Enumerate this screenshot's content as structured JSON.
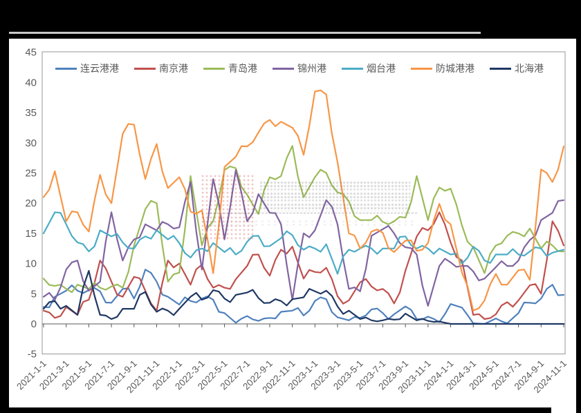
{
  "page": {
    "background": "#ffffff",
    "frame_color": "#000000",
    "header_rule_color": "#c9c9c9"
  },
  "watermark": {
    "stamp_color": "#c03028",
    "text_color": "#6a6a6a"
  },
  "axis": {
    "label_color": "#595959",
    "border_color": "#a6a6a6",
    "y_tick_labels": [
      "45",
      "40",
      "35",
      "30",
      "25",
      "20",
      "15",
      "10",
      "5",
      "0",
      "-5"
    ],
    "x_tick_labels": [
      "2021-1-1",
      "2021-3-1",
      "2021-5-1",
      "2021-7-1",
      "2021-9-1",
      "2021-11-1",
      "2022-1-1",
      "2022-3-1",
      "2022-5-1",
      "2022-7-1",
      "2022-9-1",
      "2022-11-1",
      "2023-1-1",
      "2023-3-1",
      "2023-5-1",
      "2023-7-1",
      "2023-9-1",
      "2023-11-1",
      "2024-1-1",
      "2024-3-1",
      "2024-5-1",
      "2024-7-1",
      "2024-9-1",
      "2024-11-1"
    ]
  },
  "chart_data": {
    "type": "line",
    "title": "",
    "xlabel": "",
    "ylabel": "",
    "ylim": [
      -5,
      45
    ],
    "grid": false,
    "legend_position": "top",
    "categories": [
      "2021-1-1",
      "2021-2-1",
      "2021-3-1",
      "2021-4-1",
      "2021-5-1",
      "2021-6-1",
      "2021-7-1",
      "2021-8-1",
      "2021-9-1",
      "2021-10-1",
      "2021-11-1",
      "2021-12-1",
      "2022-1-1",
      "2022-2-1",
      "2022-3-1",
      "2022-4-1",
      "2022-5-1",
      "2022-6-1",
      "2022-7-1",
      "2022-8-1",
      "2022-9-1",
      "2022-10-1",
      "2022-11-1",
      "2022-12-1",
      "2023-1-1",
      "2023-2-1",
      "2023-3-1",
      "2023-4-1",
      "2023-5-1",
      "2023-6-1",
      "2023-7-1",
      "2023-8-1",
      "2023-9-1",
      "2023-10-1",
      "2023-11-1",
      "2023-12-1",
      "2024-1-1",
      "2024-2-1",
      "2024-3-1",
      "2024-4-1",
      "2024-5-1",
      "2024-6-1",
      "2024-7-1",
      "2024-8-1",
      "2024-9-1",
      "2024-10-1",
      "2024-11-1"
    ],
    "series": [
      {
        "key": "lianyungang",
        "name": "连云港港",
        "color": "#4f81bd",
        "values": [
          2.8,
          4.5,
          5.5,
          5.5,
          5.6,
          5.4,
          3.5,
          5.8,
          4.2,
          9,
          7,
          4.5,
          3.2,
          3.8,
          4.2,
          4,
          1.8,
          0.2,
          1.3,
          0.5,
          1,
          2,
          2.2,
          1.4,
          3.8,
          4.1,
          1.1,
          0.6,
          1,
          2.4,
          1.8,
          1.6,
          2.9,
          0.8,
          1.2,
          0.3,
          3.3,
          2.7,
          0.1,
          0,
          0.9,
          0.1,
          1.8,
          3.5,
          4.2,
          6.5,
          4.8
        ]
      },
      {
        "key": "nanjing",
        "name": "南京港",
        "color": "#c0504d",
        "values": [
          2.2,
          1,
          2.8,
          1.5,
          4,
          10.5,
          7,
          4.5,
          7.8,
          5.5,
          2.2,
          10.5,
          10,
          6.5,
          9.8,
          6,
          6,
          7.4,
          9.6,
          11.5,
          8,
          12.3,
          12.8,
          7.5,
          8.6,
          9.3,
          4.6,
          3.9,
          6.9,
          6.2,
          5.8,
          3.4,
          8.8,
          14.5,
          15.5,
          18.5,
          13.5,
          10.5,
          1.5,
          0.8,
          1.6,
          3.6,
          3.9,
          6.4,
          5,
          17,
          13
        ]
      },
      {
        "key": "qingdao",
        "name": "青岛港",
        "color": "#9bbb59",
        "values": [
          7.5,
          6.3,
          5.8,
          6.5,
          5.8,
          6,
          6.2,
          6,
          13,
          19,
          20,
          7,
          8.5,
          24.5,
          13,
          17,
          25.5,
          25.8,
          21.4,
          18.2,
          24.3,
          24.5,
          29.5,
          21,
          24.3,
          25,
          21.8,
          20.3,
          17.2,
          17.2,
          16.9,
          17,
          17.6,
          24.5,
          17.2,
          22.6,
          22.4,
          16.3,
          12.7,
          8.4,
          13,
          14.6,
          15,
          15.8,
          12.5,
          13,
          12
        ]
      },
      {
        "key": "jinzhou",
        "name": "锦州港",
        "color": "#8064a2",
        "values": [
          4.5,
          4,
          9,
          10.5,
          5.5,
          7,
          18.5,
          10.5,
          14,
          16.5,
          15.5,
          16.5,
          16,
          23.5,
          9,
          24,
          14,
          25.5,
          17,
          21.5,
          18.4,
          16.5,
          4,
          15,
          15.5,
          20.5,
          16.5,
          5.8,
          5.4,
          14.6,
          15.7,
          15,
          12.7,
          11.5,
          3,
          9.6,
          10.2,
          9.6,
          8.7,
          7.5,
          9.4,
          9.6,
          10.5,
          13.9,
          17.2,
          18.4,
          20.5
        ]
      },
      {
        "key": "yantai",
        "name": "烟台港",
        "color": "#4bacc6",
        "values": [
          15,
          18.5,
          16.5,
          13.5,
          12,
          15.5,
          14.5,
          13.5,
          12.5,
          14.5,
          15.5,
          14,
          13.4,
          11,
          12.5,
          13.4,
          11.9,
          11.5,
          13.6,
          14.6,
          12.9,
          14.2,
          14.7,
          12.3,
          12.5,
          13.2,
          8.3,
          12.3,
          12.5,
          12.5,
          12.5,
          12.5,
          14.5,
          12.5,
          12.5,
          12.5,
          11.5,
          10,
          12.8,
          10.5,
          11.5,
          11.5,
          11.5,
          12,
          12.5,
          11.8,
          12.3
        ]
      },
      {
        "key": "fangchenggang",
        "name": "防城港港",
        "color": "#f79646",
        "values": [
          21,
          25.3,
          17,
          18.5,
          15.3,
          24.7,
          20,
          31.5,
          33,
          24,
          29.8,
          22.5,
          24.3,
          18.6,
          18.8,
          8.4,
          26,
          27.7,
          29.4,
          31.7,
          33.8,
          33.5,
          32.5,
          28,
          38.5,
          38,
          26.8,
          15,
          12.5,
          15.3,
          15.1,
          11.9,
          13.8,
          12.1,
          13.4,
          19.9,
          16.5,
          8.5,
          2.2,
          3.9,
          8.3,
          6.5,
          8.9,
          7.3,
          25.6,
          23.5,
          29.4
        ]
      },
      {
        "key": "beihai",
        "name": "北海港",
        "color": "#1f3864",
        "values": [
          2.5,
          3.8,
          3,
          1.5,
          8.8,
          1.5,
          0.8,
          2.5,
          2.5,
          5.3,
          2,
          2.2,
          2.5,
          4.5,
          4,
          5.6,
          4.2,
          4.8,
          5.2,
          4.3,
          3.5,
          3.8,
          4.1,
          4.4,
          5.4,
          5.5,
          2.9,
          2.2,
          0.8,
          0.6,
          0.6,
          0.7,
          1.7,
          0.6,
          0.5,
          0.4,
          0,
          0,
          0,
          0,
          0,
          0,
          0,
          0,
          0,
          0,
          0
        ]
      }
    ]
  }
}
